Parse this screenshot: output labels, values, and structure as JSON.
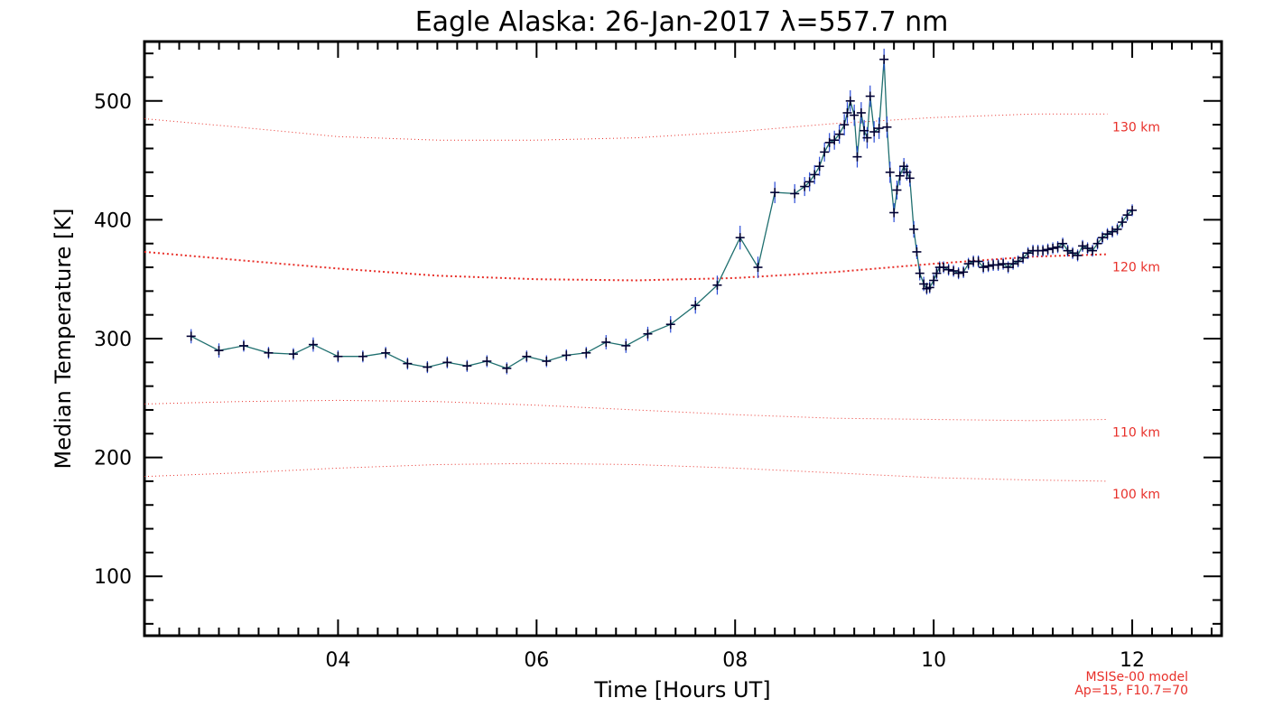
{
  "chart_data": {
    "type": "line",
    "title": "Eagle Alaska: 26-Jan-2017 λ=557.7 nm",
    "xlabel": "Time [Hours UT]",
    "ylabel": "Median Temperature [K]",
    "xlim": [
      2.05,
      12.9
    ],
    "ylim": [
      50,
      550
    ],
    "x_ticks": [
      4,
      6,
      8,
      10,
      12
    ],
    "x_tick_labels": [
      "04",
      "06",
      "08",
      "10",
      "12"
    ],
    "y_ticks": [
      100,
      200,
      300,
      400,
      500
    ],
    "y_tick_labels": [
      "100",
      "200",
      "300",
      "400",
      "500"
    ],
    "grid": false,
    "colors": {
      "series_line": "#1f6f6f",
      "marker": "#000033",
      "error_bar": "#2a4bd7",
      "model": "#e8302a"
    },
    "series": [
      {
        "x": [
          2.52,
          2.8,
          3.05,
          3.3,
          3.55,
          3.75,
          4.0,
          4.25,
          4.48,
          4.7,
          4.9,
          5.1,
          5.3,
          5.5,
          5.7,
          5.9,
          6.1,
          6.3,
          6.5,
          6.7,
          6.9,
          7.12,
          7.35,
          7.6,
          7.82,
          8.05,
          8.23,
          8.4,
          8.6,
          8.7,
          8.75,
          8.8,
          8.85,
          8.9,
          8.95,
          9.0,
          9.05,
          9.1,
          9.13,
          9.16,
          9.2,
          9.23,
          9.27,
          9.3,
          9.33,
          9.36,
          9.4,
          9.45,
          9.5,
          9.53,
          9.56,
          9.6,
          9.63,
          9.66,
          9.7,
          9.73,
          9.76,
          9.8,
          9.83,
          9.86,
          9.9,
          9.93,
          9.96,
          10.0,
          10.03,
          10.06,
          10.1,
          10.15,
          10.2,
          10.25,
          10.3,
          10.35,
          10.4,
          10.45,
          10.5,
          10.55,
          10.6,
          10.65,
          10.7,
          10.75,
          10.8,
          10.85,
          10.9,
          10.95,
          11.0,
          11.05,
          11.1,
          11.15,
          11.2,
          11.25,
          11.3,
          11.35,
          11.4,
          11.45,
          11.5,
          11.55,
          11.6,
          11.65,
          11.7,
          11.75,
          11.8,
          11.85,
          11.9,
          11.95,
          12.0
        ],
        "y": [
          302,
          290,
          294,
          288,
          287,
          295,
          285,
          285,
          288,
          279,
          276,
          280,
          277,
          281,
          275,
          285,
          281,
          286,
          288,
          297,
          294,
          304,
          312,
          328,
          345,
          385,
          360,
          423,
          422,
          428,
          432,
          438,
          445,
          457,
          465,
          467,
          472,
          480,
          490,
          500,
          488,
          453,
          490,
          475,
          469,
          504,
          474,
          477,
          535,
          478,
          440,
          406,
          425,
          437,
          445,
          440,
          435,
          392,
          373,
          355,
          346,
          342,
          343,
          349,
          355,
          360,
          360,
          358,
          357,
          355,
          356,
          363,
          365,
          365,
          360,
          361,
          362,
          362,
          363,
          360,
          363,
          365,
          368,
          372,
          374,
          374,
          374,
          375,
          376,
          377,
          380,
          374,
          372,
          370,
          378,
          376,
          374,
          380,
          385,
          388,
          390,
          392,
          398,
          404,
          408
        ],
        "yerr": [
          6,
          6,
          5,
          5,
          5,
          6,
          5,
          5,
          5,
          5,
          5,
          5,
          5,
          5,
          5,
          5,
          5,
          5,
          5,
          6,
          6,
          6,
          7,
          7,
          8,
          10,
          9,
          9,
          8,
          8,
          8,
          8,
          8,
          8,
          8,
          8,
          8,
          9,
          9,
          9,
          9,
          9,
          9,
          9,
          9,
          9,
          9,
          9,
          9,
          9,
          9,
          8,
          8,
          8,
          7,
          7,
          7,
          7,
          6,
          6,
          6,
          5,
          5,
          5,
          5,
          5,
          5,
          5,
          5,
          5,
          5,
          5,
          5,
          5,
          5,
          5,
          5,
          5,
          5,
          5,
          5,
          5,
          5,
          5,
          5,
          5,
          5,
          5,
          5,
          5,
          5,
          5,
          5,
          5,
          5,
          5,
          5,
          5,
          5,
          5,
          5,
          5,
          5,
          5,
          5
        ]
      }
    ],
    "model_curves": [
      {
        "name": "100 km",
        "x": [
          2.05,
          3.0,
          4.0,
          5.0,
          6.0,
          7.0,
          8.0,
          9.0,
          10.0,
          11.0,
          11.75
        ],
        "y": [
          184,
          187,
          191,
          194,
          195,
          194,
          191,
          187,
          183,
          181,
          180
        ]
      },
      {
        "name": "110 km",
        "x": [
          2.05,
          3.0,
          4.0,
          5.0,
          6.0,
          7.0,
          8.0,
          9.0,
          10.0,
          11.0,
          11.75
        ],
        "y": [
          245,
          247,
          248,
          247,
          244,
          240,
          236,
          233,
          232,
          231,
          232
        ]
      },
      {
        "name": "120 km",
        "x": [
          2.05,
          3.0,
          4.0,
          5.0,
          6.0,
          7.0,
          8.0,
          9.0,
          10.0,
          11.0,
          11.75
        ],
        "y": [
          373,
          366,
          359,
          353,
          350,
          349,
          351,
          356,
          363,
          369,
          371
        ]
      },
      {
        "name": "130 km",
        "x": [
          2.05,
          3.0,
          4.0,
          5.0,
          6.0,
          7.0,
          8.0,
          9.0,
          10.0,
          11.0,
          11.75
        ],
        "y": [
          485,
          478,
          470,
          467,
          467,
          469,
          474,
          481,
          486,
          489,
          489
        ]
      }
    ],
    "model_label_x": 11.8,
    "note_lines": [
      "MSISe-00 model",
      "Ap=15, F10.7=70"
    ]
  }
}
